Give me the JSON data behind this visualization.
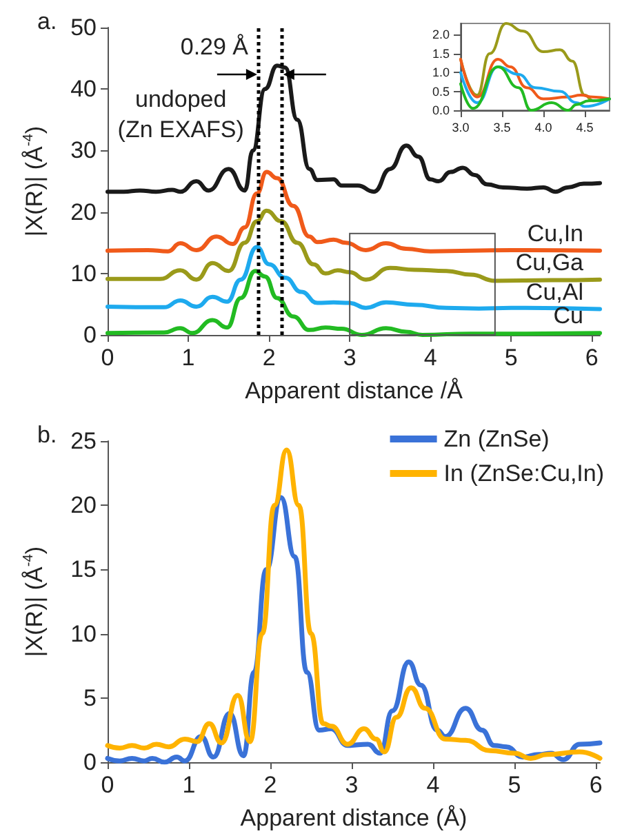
{
  "chart_data": [
    {
      "type": "line",
      "title": "a.",
      "xlabel": "Apparent distance /Å",
      "ylabel": "|X(R)| (Å$^{-4}$)",
      "xlim": [
        0,
        6.1
      ],
      "ylim": [
        0,
        50
      ],
      "xticks": [
        0,
        1,
        2,
        3,
        4,
        5,
        6
      ],
      "yticks": [
        0,
        10,
        20,
        30,
        40,
        50
      ],
      "grid": false,
      "legend": false,
      "line_style": "solid",
      "marker": "none",
      "ref_lines": [
        {
          "axis": "x",
          "value": 1.87,
          "color": "#000000",
          "line_style": "dotted"
        },
        {
          "axis": "x",
          "value": 2.16,
          "color": "#000000",
          "line_style": "dotted"
        }
      ],
      "annotations": [
        "0.29 Å"
      ],
      "series": [
        {
          "name": "undoped\n(Zn EXAFS)",
          "color": "#1a1a1a",
          "x": [
            0,
            0.2,
            0.4,
            0.6,
            0.8,
            0.9,
            1.1,
            1.25,
            1.5,
            1.7,
            1.8,
            1.95,
            2.1,
            2.2,
            2.35,
            2.5,
            2.6,
            2.8,
            2.9,
            3.1,
            3.3,
            3.5,
            3.7,
            3.85,
            4.0,
            4.1,
            4.25,
            4.4,
            4.55,
            4.7,
            4.9,
            5.2,
            5.4,
            5.55,
            5.7,
            5.9,
            6.1
          ],
          "values": [
            23.3,
            23.3,
            23.5,
            23.3,
            23.6,
            23.3,
            25,
            23.5,
            27,
            23.5,
            30,
            40,
            43.8,
            43.5,
            35,
            27,
            25.2,
            25.3,
            24.3,
            24.3,
            23.3,
            27,
            30.8,
            29,
            25.3,
            25,
            26.5,
            27.2,
            26,
            24.5,
            24,
            23.8,
            24,
            23.3,
            24,
            24.6,
            24.7
          ]
        },
        {
          "name": "Cu,In",
          "color": "#f05a1a",
          "x": [
            0,
            0.5,
            0.75,
            0.9,
            1.1,
            1.35,
            1.55,
            1.7,
            1.85,
            1.97,
            2.1,
            2.3,
            2.5,
            2.6,
            2.8,
            2.95,
            3.2,
            3.45,
            3.7,
            4.0,
            4.5,
            5.0,
            6.1
          ],
          "values": [
            13.7,
            13.8,
            13.6,
            14.9,
            13.8,
            16,
            14.8,
            17.5,
            23,
            26.5,
            25.5,
            21,
            16,
            15.1,
            15.5,
            15,
            13.8,
            14.9,
            14,
            13.6,
            13.7,
            13.8,
            13.7
          ]
        },
        {
          "name": "Cu,Ga",
          "color": "#9a9a1a",
          "x": [
            0,
            0.65,
            0.9,
            1.1,
            1.3,
            1.5,
            1.7,
            1.85,
            1.97,
            2.15,
            2.35,
            2.55,
            2.7,
            2.85,
            3.0,
            3.2,
            3.5,
            3.8,
            4.2,
            4.5,
            4.8,
            5.5,
            6.1
          ],
          "values": [
            9.1,
            9.1,
            10.5,
            9,
            11.7,
            10.4,
            15,
            18.5,
            20.2,
            18.5,
            15,
            11.5,
            10,
            10.5,
            10.2,
            9,
            10.9,
            10.6,
            10.4,
            9.8,
            8.8,
            8.9,
            9
          ]
        },
        {
          "name": "Cu,Al",
          "color": "#1eaaee",
          "x": [
            0,
            0.7,
            0.9,
            1.1,
            1.3,
            1.48,
            1.65,
            1.85,
            2.0,
            2.2,
            2.4,
            2.6,
            2.8,
            3.0,
            3.2,
            3.45,
            3.8,
            4.2,
            4.6,
            5.0,
            6.1
          ],
          "values": [
            4.6,
            4.5,
            5.6,
            4.6,
            6.2,
            5.4,
            9,
            14.3,
            11.5,
            9.3,
            7,
            5.2,
            5.3,
            5.2,
            4.4,
            5.3,
            4.9,
            4.4,
            4.3,
            4.4,
            4.2
          ]
        },
        {
          "name": "Cu",
          "color": "#22bb22",
          "x": [
            0,
            0.7,
            0.9,
            1.05,
            1.3,
            1.48,
            1.65,
            1.83,
            1.95,
            2.1,
            2.3,
            2.5,
            2.7,
            2.9,
            3.15,
            3.45,
            3.7,
            3.9,
            4.5,
            5.0,
            6.1
          ],
          "values": [
            0.3,
            0.4,
            1.1,
            0.3,
            2.4,
            1.2,
            6,
            10.4,
            9.5,
            6,
            3,
            0.8,
            1.2,
            1,
            0,
            1.1,
            0.5,
            0,
            0.2,
            0.2,
            0.3
          ]
        }
      ]
    },
    {
      "type": "line",
      "xlim": [
        3.0,
        4.8
      ],
      "ylim": [
        0,
        2.3
      ],
      "xticks": [
        {
          "value": 3,
          "label": "3.0"
        },
        3.5,
        {
          "value": 4,
          "label": "4.0"
        },
        4.5
      ],
      "yticks": [
        {
          "value": 0,
          "label": "0.0"
        },
        0.5,
        {
          "value": 1,
          "label": "1.0"
        },
        1.5,
        {
          "value": 2,
          "label": "2.0"
        }
      ],
      "grid": false,
      "legend": false,
      "line_style": "solid",
      "marker": "none",
      "series": [
        {
          "color": "#9a9a1a",
          "x": [
            3.0,
            3.2,
            3.35,
            3.55,
            3.75,
            4.0,
            4.2,
            4.35,
            4.5,
            4.6,
            4.8
          ],
          "values": [
            1.35,
            0.4,
            1.5,
            2.3,
            2.1,
            1.55,
            1.6,
            1.3,
            0.4,
            0.25,
            0.3
          ]
        },
        {
          "color": "#f05a1a",
          "x": [
            3.0,
            3.2,
            3.45,
            3.6,
            3.8,
            4.0,
            4.3,
            4.45,
            4.6,
            4.8
          ],
          "values": [
            1.35,
            0.35,
            1.35,
            1.15,
            0.6,
            0.3,
            0.35,
            0.4,
            0.35,
            0.3
          ]
        },
        {
          "color": "#1eaaee",
          "x": [
            3.0,
            3.2,
            3.45,
            3.7,
            3.9,
            4.2,
            4.4,
            4.5,
            4.8
          ],
          "values": [
            1.0,
            0.2,
            1.15,
            0.95,
            0.6,
            0.5,
            0.2,
            0.1,
            0.3
          ]
        },
        {
          "color": "#22bb22",
          "x": [
            3.0,
            3.15,
            3.45,
            3.7,
            3.85,
            4.1,
            4.3,
            4.4,
            4.55,
            4.8
          ],
          "values": [
            0.7,
            0.05,
            1.15,
            0.6,
            0.0,
            0.2,
            0.0,
            0.15,
            0.25,
            0.3
          ]
        }
      ]
    },
    {
      "type": "line",
      "title": "b.",
      "xlabel": "Apparent distance (Å)",
      "ylabel": "|X(R)| (Å$^{-4}$)",
      "xlim": [
        0,
        6.05
      ],
      "ylim": [
        0,
        25
      ],
      "xticks": [
        0,
        1,
        2,
        3,
        4,
        5,
        6
      ],
      "yticks": [
        0,
        5,
        10,
        15,
        20,
        25
      ],
      "grid": false,
      "legend": "top right",
      "line_style": "solid",
      "marker": "none",
      "series": [
        {
          "name": "Zn (ZnSe)",
          "color": "#3a72d8",
          "x": [
            0,
            0.15,
            0.3,
            0.45,
            0.55,
            0.7,
            0.85,
            0.95,
            1.15,
            1.3,
            1.5,
            1.67,
            1.8,
            1.95,
            2.13,
            2.3,
            2.45,
            2.6,
            2.75,
            2.95,
            3.2,
            3.35,
            3.5,
            3.7,
            3.85,
            4.05,
            4.15,
            4.4,
            4.6,
            4.75,
            4.9,
            5.1,
            5.3,
            5.45,
            5.6,
            5.8,
            6.05
          ],
          "values": [
            0.3,
            0.1,
            0.3,
            0.1,
            0.3,
            0,
            0.4,
            0.1,
            2,
            0.4,
            3.8,
            0.5,
            7,
            15,
            20.6,
            16,
            7,
            2.5,
            2.6,
            1.3,
            1.4,
            0.7,
            4,
            7.8,
            6,
            2.5,
            2,
            4.2,
            2.5,
            1.3,
            1.2,
            0.4,
            0.6,
            0.7,
            0.2,
            1.4,
            1.5
          ]
        },
        {
          "name": "In (ZnSe:Cu,In)",
          "color": "#ffb300",
          "x": [
            0,
            0.15,
            0.3,
            0.45,
            0.6,
            0.75,
            0.95,
            1.1,
            1.25,
            1.4,
            1.6,
            1.75,
            1.9,
            2.05,
            2.2,
            2.35,
            2.5,
            2.65,
            2.75,
            2.95,
            3.15,
            3.3,
            3.4,
            3.55,
            3.73,
            3.9,
            4.15,
            4.4,
            4.7,
            5.0,
            5.2,
            5.4,
            5.8,
            6.05
          ],
          "values": [
            1.3,
            1.1,
            1.3,
            1.1,
            1.4,
            1.2,
            1.8,
            1.6,
            3,
            1.5,
            5.2,
            1.6,
            10,
            20,
            24.3,
            20,
            10,
            3,
            2.8,
            1.4,
            2.6,
            1.8,
            0.8,
            3.5,
            5.8,
            4.2,
            1.8,
            1.7,
            0.9,
            0.7,
            0.3,
            0.6,
            0.8,
            0.3
          ]
        }
      ]
    }
  ]
}
